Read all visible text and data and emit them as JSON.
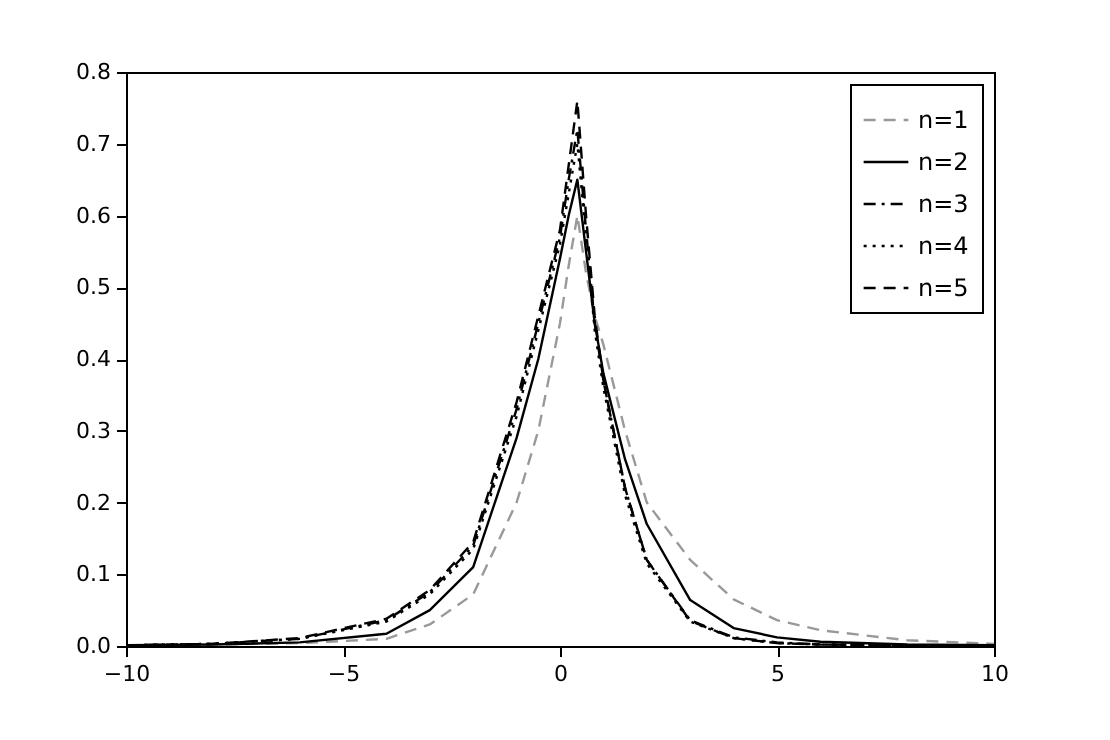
{
  "chart_data": {
    "type": "line",
    "x": [
      -10,
      -8,
      -6,
      -4,
      -3,
      -2,
      -1,
      -0.5,
      0,
      0.2,
      0.4,
      0.6,
      0.8,
      1,
      1.5,
      2,
      3,
      4,
      5,
      6,
      8,
      10
    ],
    "series": [
      {
        "name": "n=1",
        "color": "#999999",
        "line_style": "dashed",
        "values": [
          0.001,
          0.002,
          0.004,
          0.01,
          0.03,
          0.072,
          0.2,
          0.3,
          0.45,
          0.53,
          0.6,
          0.52,
          0.46,
          0.42,
          0.3,
          0.2,
          0.12,
          0.065,
          0.036,
          0.022,
          0.008,
          0.003
        ]
      },
      {
        "name": "n=2",
        "color": "#000000",
        "line_style": "solid",
        "values": [
          0.001,
          0.002,
          0.005,
          0.017,
          0.05,
          0.11,
          0.29,
          0.4,
          0.54,
          0.6,
          0.65,
          0.55,
          0.45,
          0.38,
          0.26,
          0.17,
          0.064,
          0.025,
          0.012,
          0.006,
          0.002,
          0.001
        ]
      },
      {
        "name": "n=3",
        "color": "#000000",
        "line_style": "dashdot",
        "values": [
          0.001,
          0.003,
          0.01,
          0.036,
          0.075,
          0.14,
          0.33,
          0.45,
          0.57,
          0.65,
          0.72,
          0.58,
          0.45,
          0.37,
          0.22,
          0.12,
          0.036,
          0.012,
          0.005,
          0.002,
          0.001,
          0
        ]
      },
      {
        "name": "n=4",
        "color": "#000000",
        "line_style": "dotted",
        "values": [
          0.001,
          0.003,
          0.01,
          0.034,
          0.072,
          0.135,
          0.32,
          0.44,
          0.56,
          0.63,
          0.7,
          0.57,
          0.44,
          0.36,
          0.21,
          0.115,
          0.034,
          0.011,
          0.004,
          0.002,
          0.001,
          0
        ]
      },
      {
        "name": "n=5",
        "color": "#000000",
        "line_style": "dashed",
        "values": [
          0.001,
          0.003,
          0.011,
          0.038,
          0.078,
          0.145,
          0.34,
          0.46,
          0.58,
          0.67,
          0.76,
          0.6,
          0.46,
          0.37,
          0.22,
          0.12,
          0.035,
          0.011,
          0.004,
          0.002,
          0.001,
          0
        ]
      }
    ],
    "xlim": [
      -10,
      10
    ],
    "xticks": [
      -10,
      -5,
      0,
      5,
      10
    ],
    "ylim": [
      0,
      0.8
    ],
    "yticks": [
      {
        "value": 0,
        "label": "0.0"
      },
      0.1,
      0.2,
      0.3,
      0.4,
      0.5,
      0.6,
      0.7,
      0.8
    ],
    "grid": false,
    "legend": "top right",
    "marker": "none"
  }
}
